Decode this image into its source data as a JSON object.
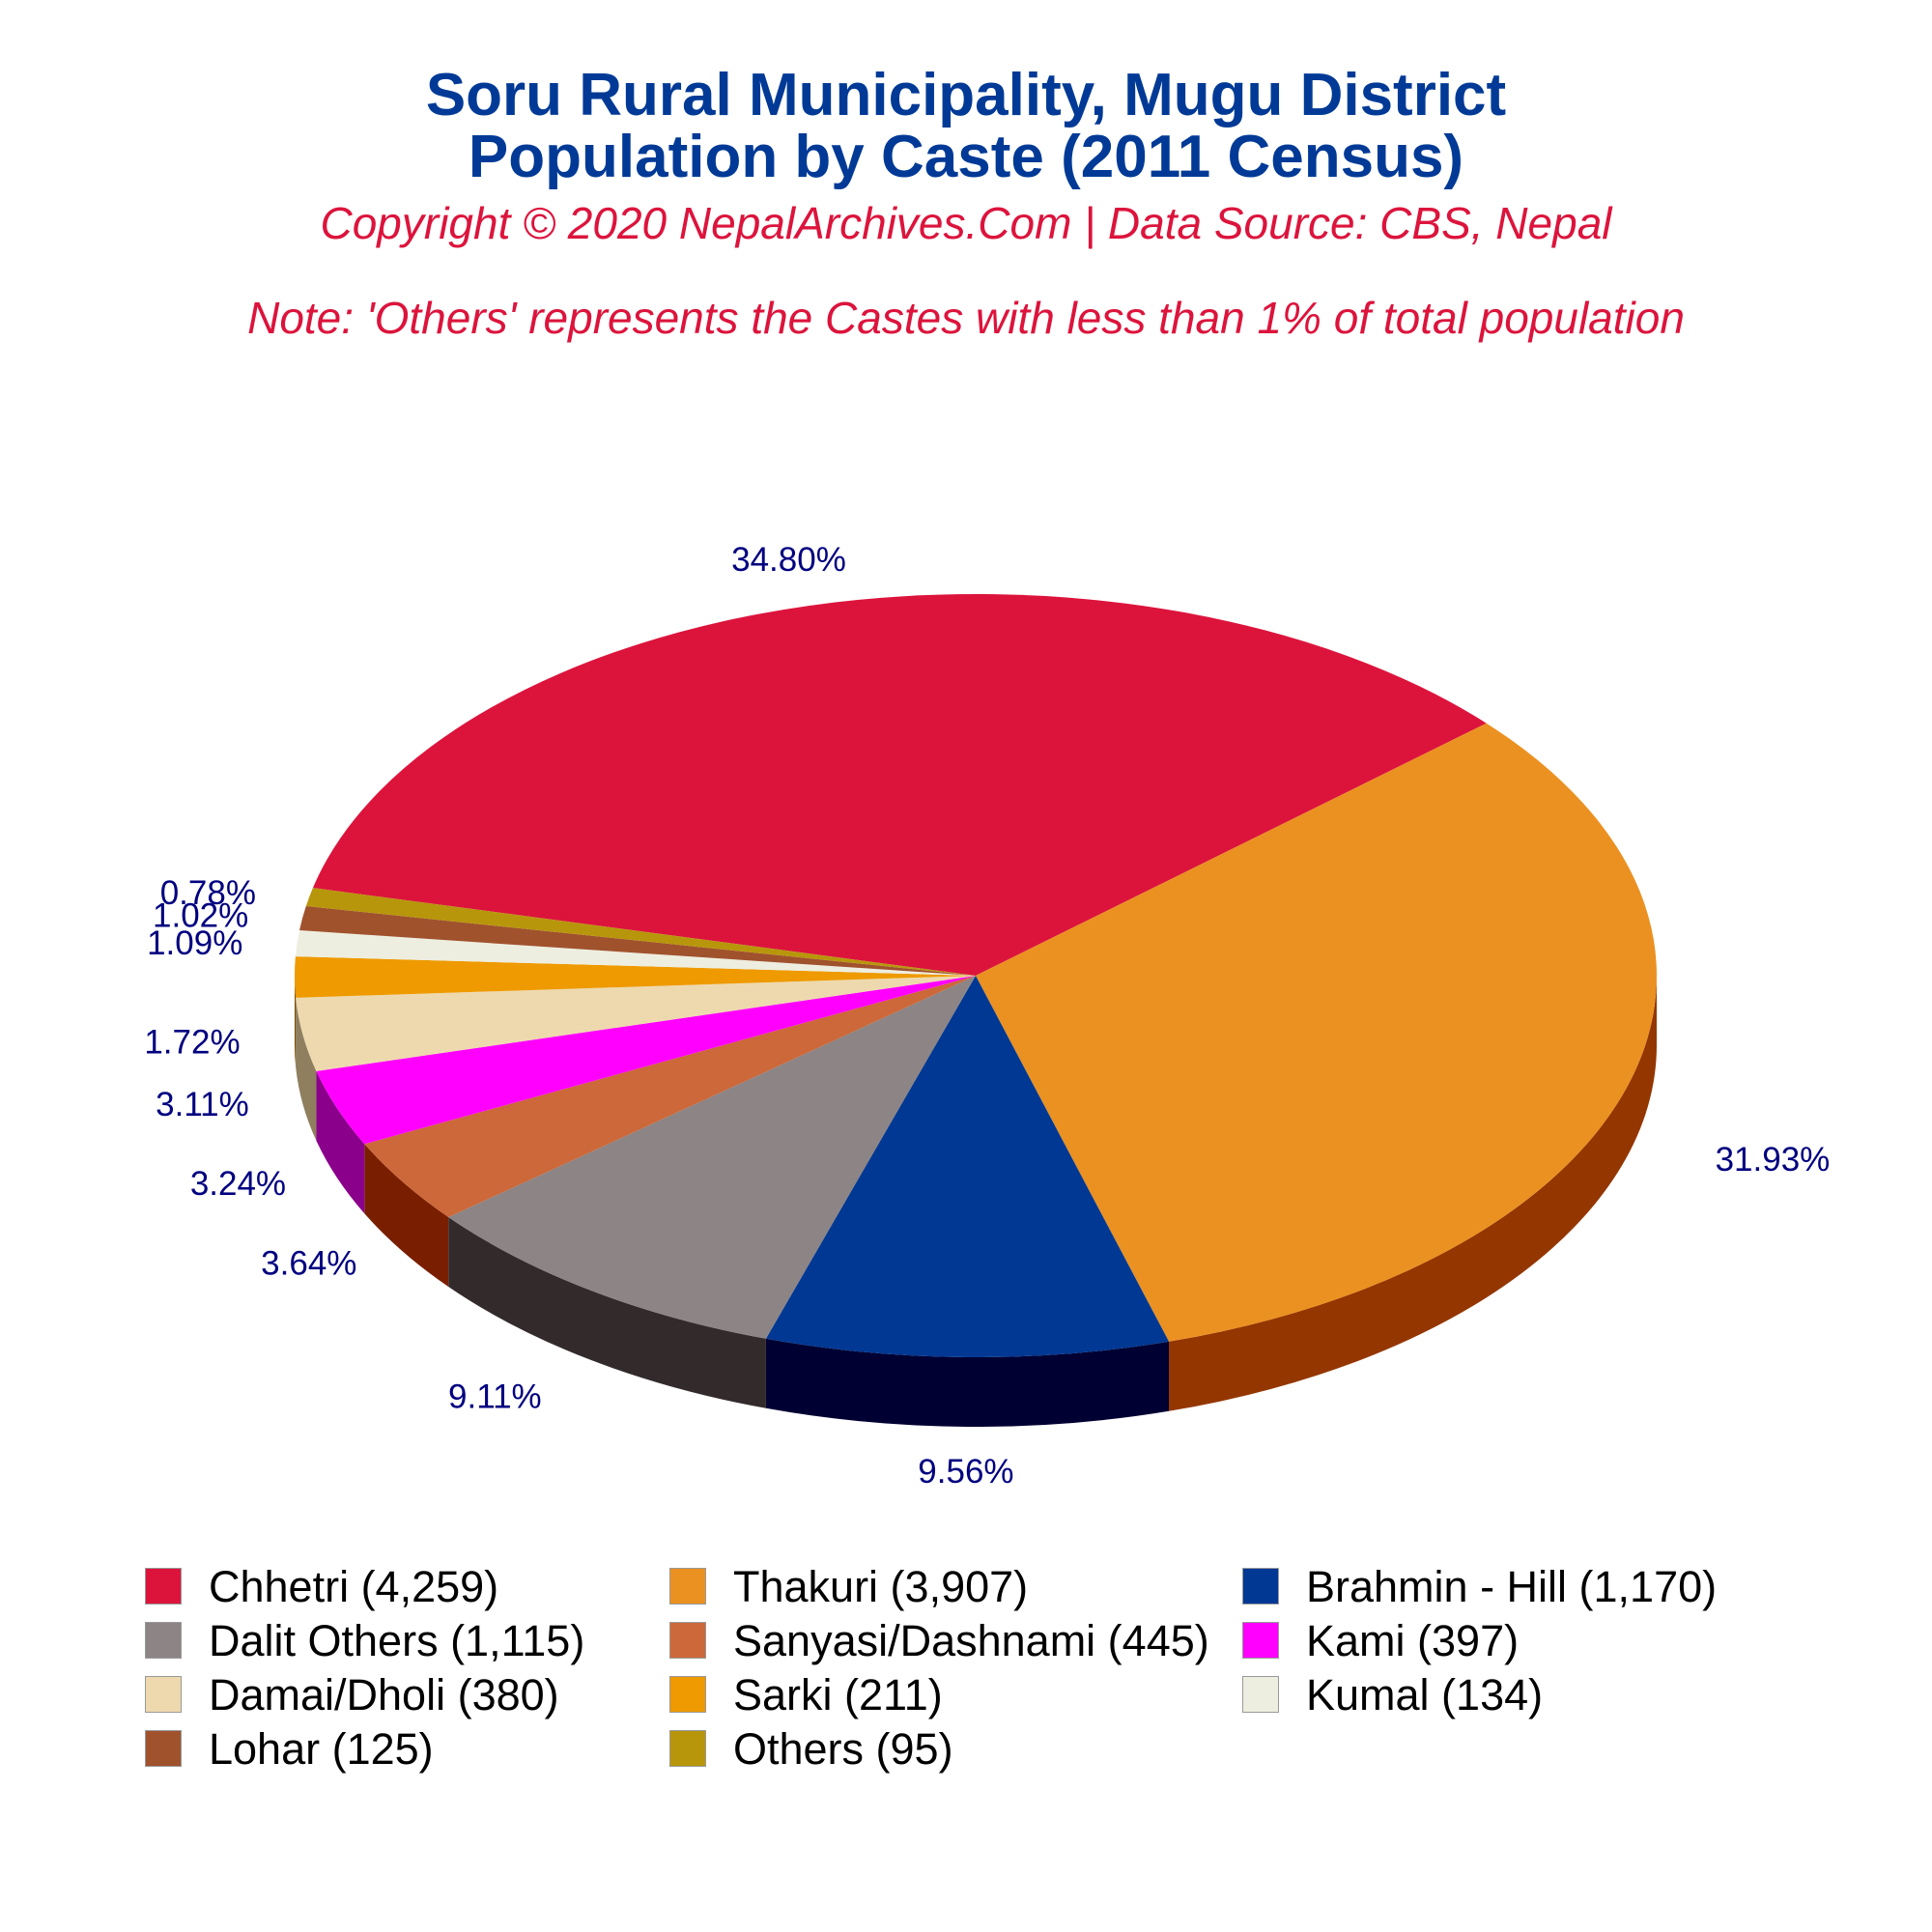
{
  "title_line1": "Soru Rural Municipality, Mugu District",
  "title_line2": "Population by Caste (2011 Census)",
  "copyright": "Copyright © 2020 NepalArchives.Com | Data Source: CBS, Nepal",
  "note": "Note: 'Others' represents the Castes with less than 1% of total population",
  "chart_data": {
    "type": "pie",
    "style": "3d",
    "label_color": "#000080",
    "slices": [
      {
        "label": "Chhetri (4,259)",
        "value": 4259,
        "percent_label": "34.80%",
        "color": "#dc143c",
        "side_color": "#8b0000"
      },
      {
        "label": "Thakuri (3,907)",
        "value": 3907,
        "percent_label": "31.93%",
        "color": "#eb9121",
        "side_color": "#943600"
      },
      {
        "label": "Brahmin - Hill (1,170)",
        "value": 1170,
        "percent_label": "9.56%",
        "color": "#003893",
        "side_color": "#000033"
      },
      {
        "label": "Dalit Others (1,115)",
        "value": 1115,
        "percent_label": "9.11%",
        "color": "#8c8485",
        "side_color": "#332a2c"
      },
      {
        "label": "Sanyasi/Dashnami (445)",
        "value": 445,
        "percent_label": "3.64%",
        "color": "#cc6839",
        "side_color": "#7a1e00"
      },
      {
        "label": "Kami (397)",
        "value": 397,
        "percent_label": "3.24%",
        "color": "#ff00ff",
        "side_color": "#8b008b"
      },
      {
        "label": "Damai/Dholi (380)",
        "value": 380,
        "percent_label": "3.11%",
        "color": "#eed9ae",
        "side_color": "#8f7f5e"
      },
      {
        "label": "Sarki (211)",
        "value": 211,
        "percent_label": "1.72%",
        "color": "#ee9a00",
        "side_color": "#7a4f00"
      },
      {
        "label": "Kumal (134)",
        "value": 134,
        "percent_label": "1.09%",
        "color": "#eeeee0",
        "side_color": "#8b8b80"
      },
      {
        "label": "Lohar (125)",
        "value": 125,
        "percent_label": "1.02%",
        "color": "#a0522d",
        "side_color": "#5a2a10"
      },
      {
        "label": "Others (95)",
        "value": 95,
        "percent_label": "0.78%",
        "color": "#b8960b",
        "side_color": "#6b5500"
      }
    ]
  }
}
